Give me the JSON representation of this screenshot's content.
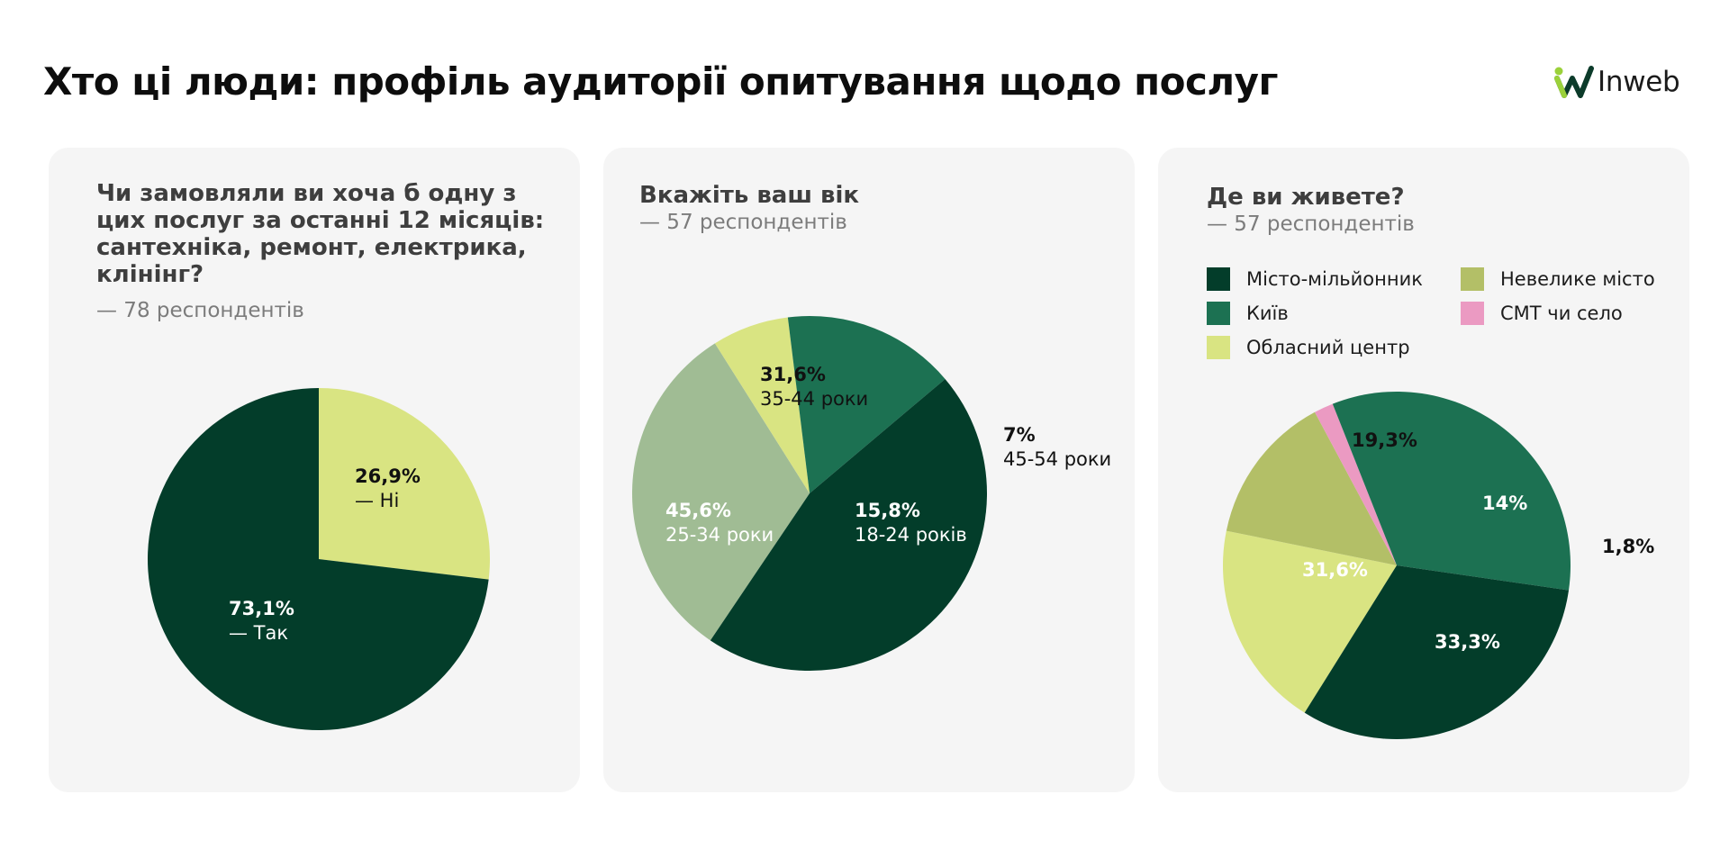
{
  "header": {
    "title": "Хто ці люди: профіль аудиторії опитування щодо послуг",
    "logo_text": "Inweb"
  },
  "colors": {
    "dark_green": "#033d2a",
    "medium_green": "#1c7152",
    "sage": "#a0bc94",
    "light_lime": "#d9e482",
    "olive": "#b3bf67",
    "pink": "#eb9ac2",
    "card_bg": "#f5f5f5"
  },
  "cards": [
    {
      "title": "Чи замовляли ви хоча б одну з цих послуг за останні 12 місяців: сантехніка, ремонт, електрика, клінінг?",
      "respondents": "— 78 респондентів"
    },
    {
      "title": "Вкажіть ваш вік",
      "respondents": "— 57 респондентів"
    },
    {
      "title": "Де ви живете?",
      "respondents": "— 57 респондентів"
    }
  ],
  "chart_data": [
    {
      "type": "pie",
      "title": "Чи замовляли ви хоча б одну з цих послуг за останні 12 місяців: сантехніка, ремонт, електрика, клінінг?",
      "slices": [
        {
          "label": "— Ні",
          "value": 26.9,
          "value_label": "26,9%",
          "color": "#d9e482"
        },
        {
          "label": "— Так",
          "value": 73.1,
          "value_label": "73,1%",
          "color": "#033d2a"
        }
      ]
    },
    {
      "type": "pie",
      "title": "Вкажіть ваш вік",
      "slices": [
        {
          "label": "35-44 роки",
          "value": 31.6,
          "value_label": "31,6%",
          "color": "#a0bc94"
        },
        {
          "label": "45-54 роки",
          "value": 7,
          "value_label": "7%",
          "color": "#d9e482"
        },
        {
          "label": "18-24 років",
          "value": 15.8,
          "value_label": "15,8%",
          "color": "#1c7152"
        },
        {
          "label": "25-34 роки",
          "value": 45.6,
          "value_label": "45,6%",
          "color": "#033d2a"
        }
      ]
    },
    {
      "type": "pie",
      "title": "Де ви живете?",
      "legend": [
        {
          "label": "Місто-мільйонник",
          "color": "#033d2a"
        },
        {
          "label": "Київ",
          "color": "#1c7152"
        },
        {
          "label": "Обласний центр",
          "color": "#d9e482"
        },
        {
          "label": "Невелике місто",
          "color": "#b3bf67"
        },
        {
          "label": "СМТ чи село",
          "color": "#eb9ac2"
        }
      ],
      "slices": [
        {
          "label": "Обласний центр",
          "value": 19.3,
          "value_label": "19,3%",
          "color": "#d9e482"
        },
        {
          "label": "Невелике місто",
          "value": 14,
          "value_label": "14%",
          "color": "#b3bf67"
        },
        {
          "label": "СМТ чи село",
          "value": 1.8,
          "value_label": "1,8%",
          "color": "#eb9ac2"
        },
        {
          "label": "Київ",
          "value": 33.3,
          "value_label": "33,3%",
          "color": "#1c7152"
        },
        {
          "label": "Місто-мільйонник",
          "value": 31.6,
          "value_label": "31,6%",
          "color": "#033d2a"
        }
      ]
    }
  ]
}
